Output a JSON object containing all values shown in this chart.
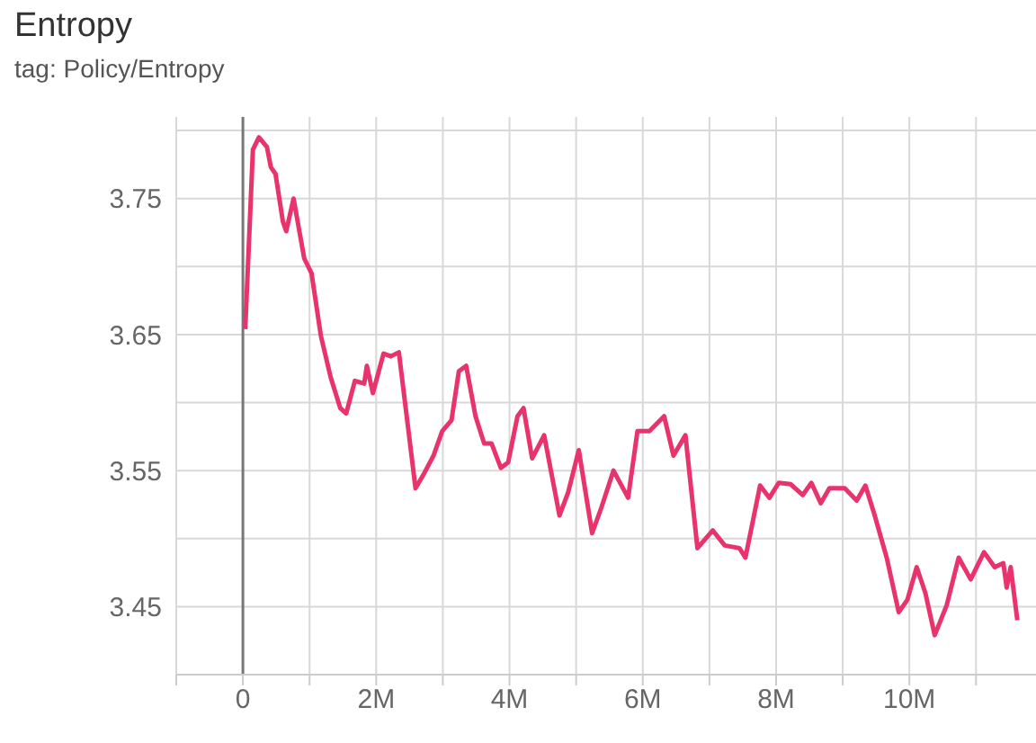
{
  "chart_data": {
    "type": "line",
    "title": "Entropy",
    "subtitle": "tag: Policy/Entropy",
    "x": [
      0.035,
      0.15,
      0.24,
      0.36,
      0.42,
      0.49,
      0.6,
      0.65,
      0.76,
      0.92,
      1.03,
      1.17,
      1.32,
      1.46,
      1.55,
      1.68,
      1.82,
      1.86,
      1.95,
      2.11,
      2.22,
      2.34,
      2.59,
      2.72,
      2.86,
      2.99,
      3.13,
      3.24,
      3.35,
      3.49,
      3.62,
      3.73,
      3.87,
      3.98,
      4.12,
      4.21,
      4.34,
      4.52,
      4.75,
      4.88,
      5.04,
      5.24,
      5.38,
      5.56,
      5.78,
      5.92,
      6.1,
      6.32,
      6.46,
      6.64,
      6.82,
      7.05,
      7.23,
      7.45,
      7.54,
      7.76,
      7.9,
      8.04,
      8.22,
      8.4,
      8.53,
      8.67,
      8.8,
      9.03,
      9.21,
      9.34,
      9.48,
      9.66,
      9.84,
      9.97,
      10.11,
      10.24,
      10.38,
      10.56,
      10.74,
      10.92,
      11.12,
      11.28,
      11.41,
      11.46,
      11.52,
      11.62
    ],
    "series": [
      {
        "color": "#e8336d",
        "values": [
          3.654,
          3.786,
          3.795,
          3.788,
          3.773,
          3.768,
          3.733,
          3.726,
          3.75,
          3.706,
          3.695,
          3.649,
          3.618,
          3.596,
          3.592,
          3.616,
          3.614,
          3.627,
          3.607,
          3.636,
          3.634,
          3.637,
          3.537,
          3.548,
          3.561,
          3.579,
          3.587,
          3.623,
          3.627,
          3.59,
          3.57,
          3.57,
          3.552,
          3.556,
          3.59,
          3.596,
          3.559,
          3.576,
          3.517,
          3.534,
          3.565,
          3.504,
          3.523,
          3.55,
          3.53,
          3.579,
          3.579,
          3.59,
          3.561,
          3.576,
          3.493,
          3.506,
          3.495,
          3.493,
          3.486,
          3.539,
          3.53,
          3.541,
          3.54,
          3.532,
          3.541,
          3.526,
          3.537,
          3.537,
          3.528,
          3.539,
          3.517,
          3.486,
          3.446,
          3.455,
          3.479,
          3.46,
          3.429,
          3.451,
          3.486,
          3.47,
          3.49,
          3.479,
          3.482,
          3.464,
          3.479,
          3.44
        ]
      }
    ],
    "xlim": [
      -1,
      11.9
    ],
    "xticks": [
      {
        "value": -1,
        "label": null
      },
      {
        "value": 0,
        "label": "0"
      },
      {
        "value": 1,
        "label": null
      },
      {
        "value": 2,
        "label": "2M"
      },
      {
        "value": 3,
        "label": null
      },
      {
        "value": 4,
        "label": "4M"
      },
      {
        "value": 5,
        "label": null
      },
      {
        "value": 6,
        "label": "6M"
      },
      {
        "value": 7,
        "label": null
      },
      {
        "value": 8,
        "label": "8M"
      },
      {
        "value": 9,
        "label": null
      },
      {
        "value": 10,
        "label": "10M"
      },
      {
        "value": 11,
        "label": null
      }
    ],
    "ylim": [
      3.4,
      3.81
    ],
    "yticks": [
      3.45,
      {
        "value": 3.5,
        "label": null
      },
      3.55,
      {
        "value": 3.6,
        "label": null
      },
      3.65,
      {
        "value": 3.7,
        "label": null
      },
      3.75,
      {
        "value": 3.8,
        "label": null
      }
    ],
    "ref_lines": [
      {
        "axis": "x",
        "value": 0,
        "color": "#777777"
      }
    ],
    "grid": true,
    "line_style": "solid"
  }
}
